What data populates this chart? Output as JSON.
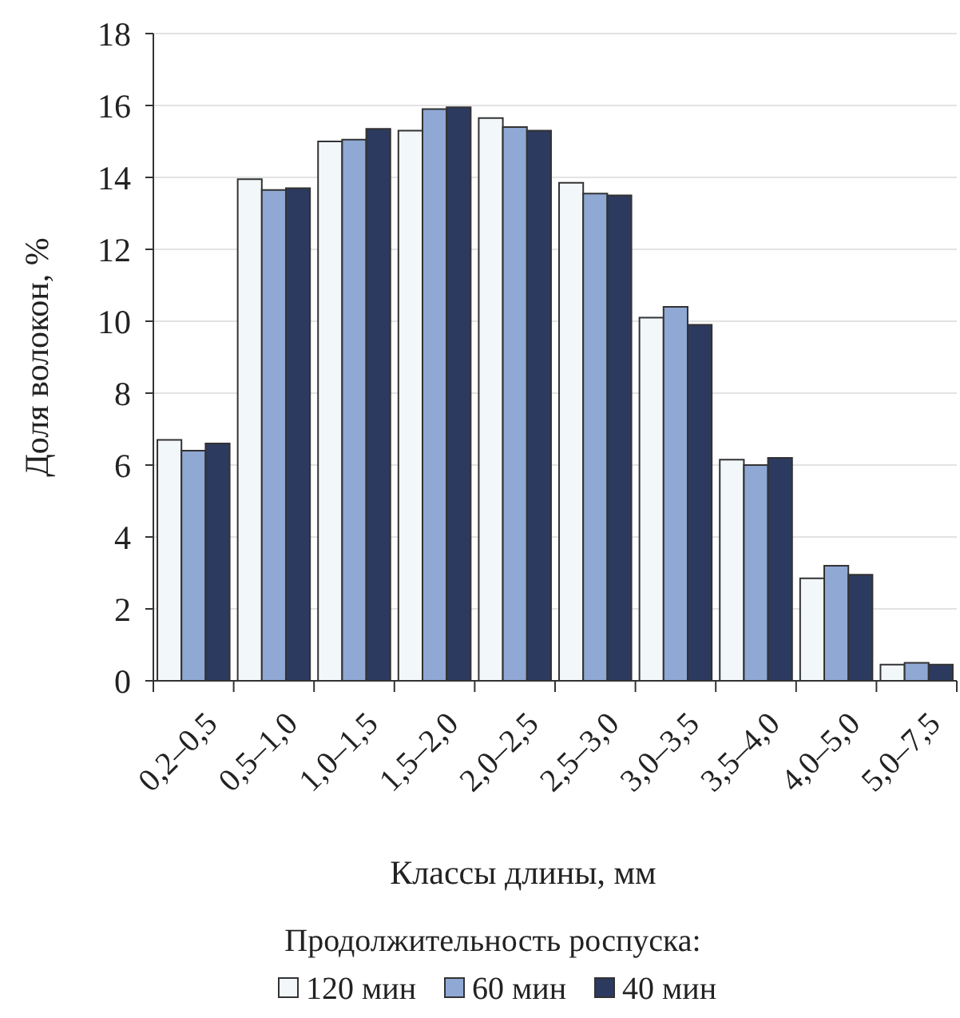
{
  "chart_data": {
    "type": "bar",
    "xlabel": "Классы длины, мм",
    "ylabel": "Доля волокон, %",
    "legend_title": "Продолжительность роспуска:",
    "categories": [
      "0,2–0,5",
      "0,5–1,0",
      "1,0–1,5",
      "1,5–2,0",
      "2,0–2,5",
      "2,5–3,0",
      "3,0–3,5",
      "3,5–4,0",
      "4,0–5,0",
      "5,0–7,5"
    ],
    "series": [
      {
        "name": "120 мин",
        "color": "#f2f7fa",
        "values": [
          6.7,
          13.95,
          15.0,
          15.3,
          15.65,
          13.85,
          10.1,
          6.15,
          2.85,
          0.45
        ]
      },
      {
        "name": "60 мин",
        "color": "#8fa8d4",
        "values": [
          6.4,
          13.65,
          15.05,
          15.9,
          15.4,
          13.55,
          10.4,
          6.0,
          3.2,
          0.5
        ]
      },
      {
        "name": "40 мин",
        "color": "#2d3a5f",
        "values": [
          6.6,
          13.7,
          15.35,
          15.95,
          15.3,
          13.5,
          9.9,
          6.2,
          2.95,
          0.45
        ]
      }
    ],
    "ylim": [
      0,
      18
    ],
    "yticks": [
      0,
      2,
      4,
      6,
      8,
      10,
      12,
      14,
      16,
      18
    ],
    "grid": "y",
    "legend": "bottom"
  }
}
